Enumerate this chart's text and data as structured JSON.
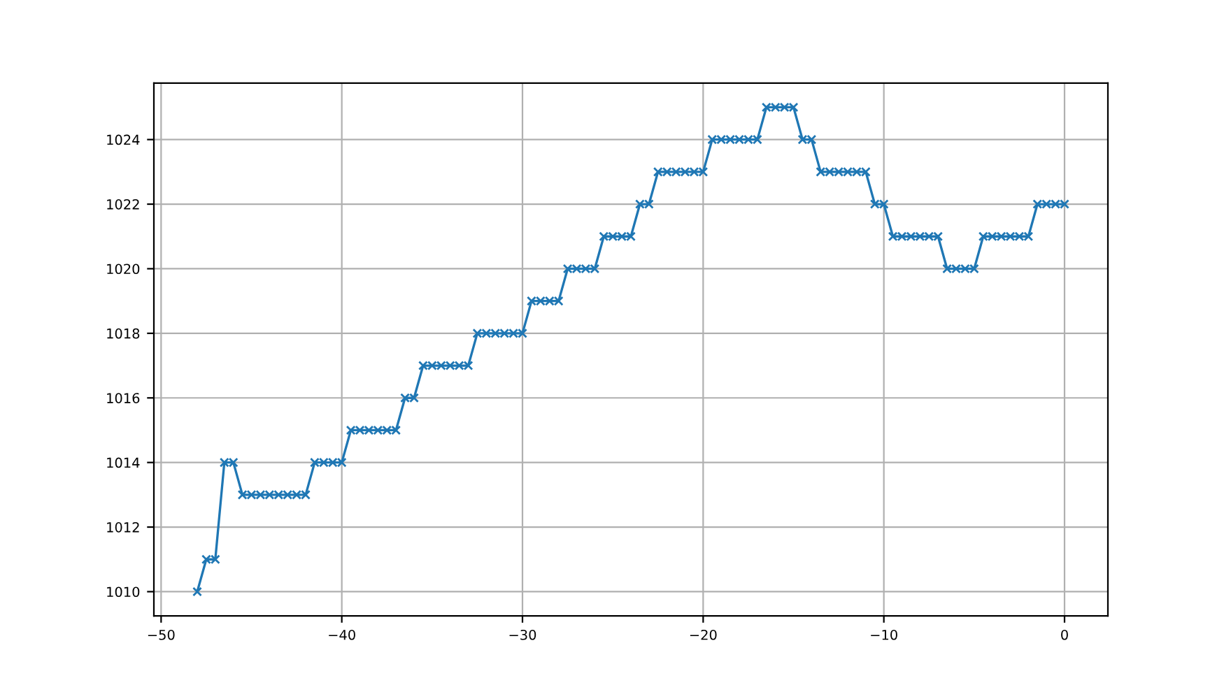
{
  "chart_data": {
    "type": "line",
    "marker": "cross",
    "line_style": "solid",
    "grid": true,
    "x": [
      -48,
      -47.5,
      -47,
      -46.5,
      -46,
      -45.5,
      -45,
      -44.5,
      -44,
      -43.5,
      -43,
      -42.5,
      -42,
      -41.5,
      -41,
      -40.5,
      -40,
      -39.5,
      -39,
      -38.5,
      -38,
      -37.5,
      -37,
      -36.5,
      -36,
      -35.5,
      -35,
      -34.5,
      -34,
      -33.5,
      -33,
      -32.5,
      -32,
      -31.5,
      -31,
      -30.5,
      -30,
      -29.5,
      -29,
      -28.5,
      -28,
      -27.5,
      -27,
      -26.5,
      -26,
      -25.5,
      -25,
      -24.5,
      -24,
      -23.5,
      -23,
      -22.5,
      -22,
      -21.5,
      -21,
      -20.5,
      -20,
      -19.5,
      -19,
      -18.5,
      -18,
      -17.5,
      -17,
      -16.5,
      -16,
      -15.5,
      -15,
      -14.5,
      -14,
      -13.5,
      -13,
      -12.5,
      -12,
      -11.5,
      -11,
      -10.5,
      -10,
      -9.5,
      -9,
      -8.5,
      -8,
      -7.5,
      -7,
      -6.5,
      -6,
      -5.5,
      -5,
      -4.5,
      -4,
      -3.5,
      -3,
      -2.5,
      -2,
      -1.5,
      -1,
      -0.5,
      0
    ],
    "series": [
      {
        "color": "#1f77b4",
        "values": [
          1010,
          1011,
          1011,
          1014,
          1014,
          1013,
          1013,
          1013,
          1013,
          1013,
          1013,
          1013,
          1013,
          1014,
          1014,
          1014,
          1014,
          1015,
          1015,
          1015,
          1015,
          1015,
          1015,
          1016,
          1016,
          1017,
          1017,
          1017,
          1017,
          1017,
          1017,
          1018,
          1018,
          1018,
          1018,
          1018,
          1018,
          1019,
          1019,
          1019,
          1019,
          1020,
          1020,
          1020,
          1020,
          1021,
          1021,
          1021,
          1021,
          1022,
          1022,
          1023,
          1023,
          1023,
          1023,
          1023,
          1023,
          1024,
          1024,
          1024,
          1024,
          1024,
          1024,
          1025,
          1025,
          1025,
          1025,
          1024,
          1024,
          1023,
          1023,
          1023,
          1023,
          1023,
          1023,
          1022,
          1022,
          1021,
          1021,
          1021,
          1021,
          1021,
          1021,
          1020,
          1020,
          1020,
          1020,
          1021,
          1021,
          1021,
          1021,
          1021,
          1021,
          1022,
          1022,
          1022,
          1022
        ]
      }
    ],
    "xlim": [
      -50.4,
      2.4
    ],
    "ylim": [
      1009.25,
      1025.75
    ],
    "xticks": [
      {
        "value": -50,
        "label": "−50"
      },
      {
        "value": -40,
        "label": "−40"
      },
      {
        "value": -30,
        "label": "−30"
      },
      {
        "value": -20,
        "label": "−20"
      },
      {
        "value": -10,
        "label": "−10"
      },
      0
    ],
    "yticks": [
      1010,
      1012,
      1014,
      1016,
      1018,
      1020,
      1022,
      1024
    ]
  }
}
